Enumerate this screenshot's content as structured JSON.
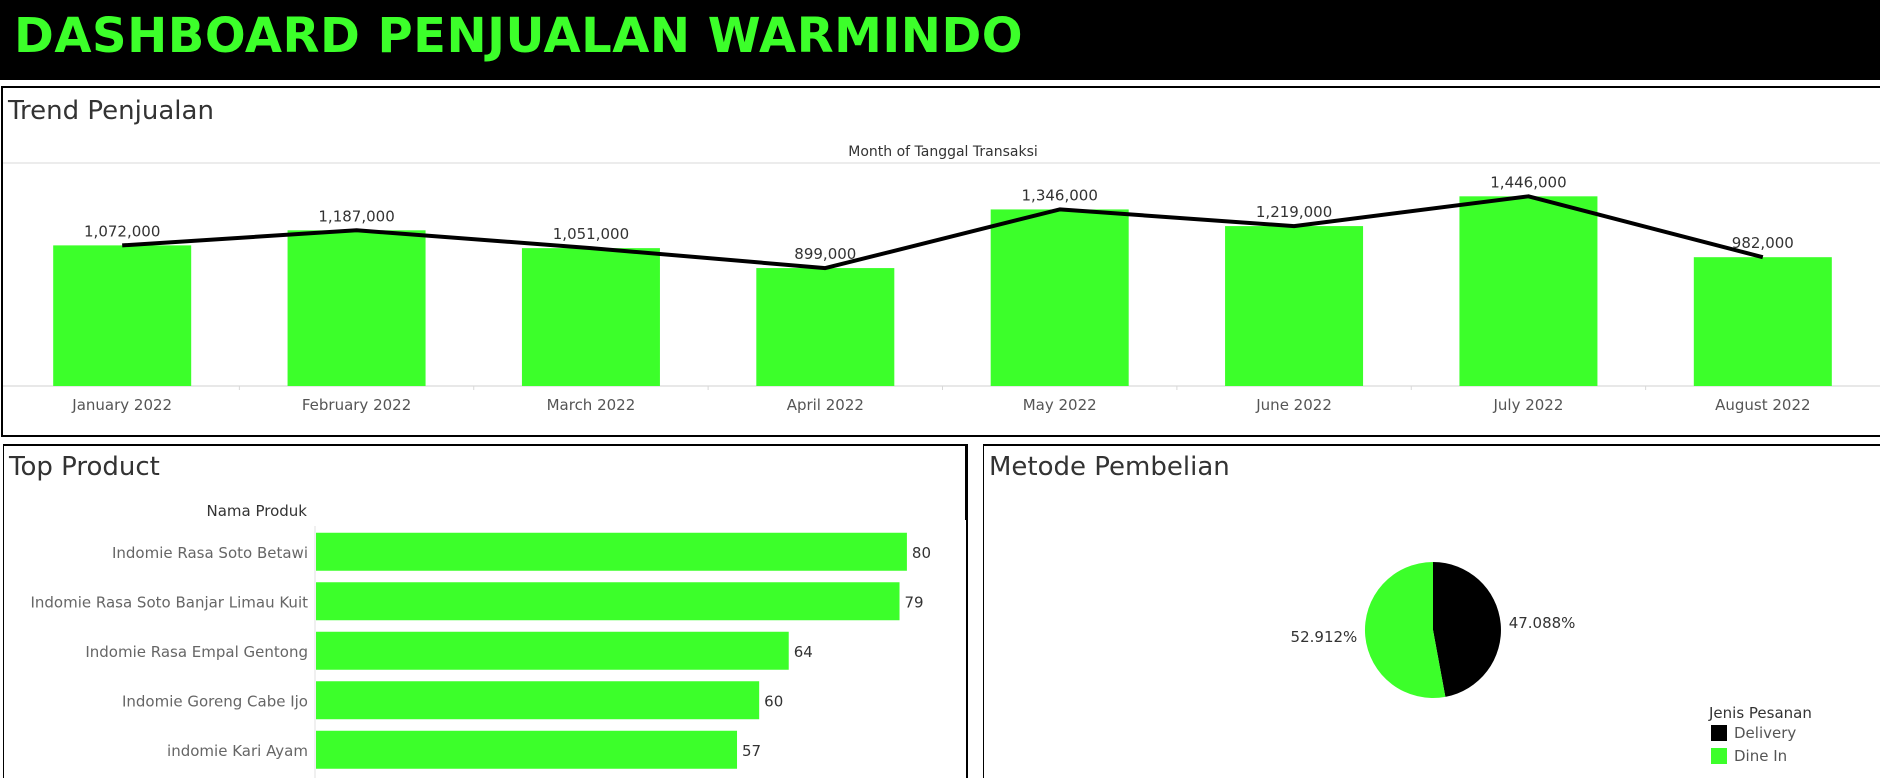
{
  "header": {
    "title": "DASHBOARD PENJUALAN WARMINDO"
  },
  "colors": {
    "accent": "#3cff2a",
    "dark": "#000000",
    "header_bg": "#000000"
  },
  "trend": {
    "title": "Trend Penjualan"
  },
  "top_product": {
    "title": "Top Product"
  },
  "metode": {
    "title": "Metode Pembelian"
  },
  "chart_data": [
    {
      "type": "bar",
      "subtype": "bar-with-line",
      "xlabel": "Month of Tanggal Transaksi",
      "ylabel": "",
      "categories": [
        "January 2022",
        "February 2022",
        "March 2022",
        "April 2022",
        "May 2022",
        "June 2022",
        "July 2022",
        "August 2022"
      ],
      "values": [
        1072000,
        1187000,
        1051000,
        899000,
        1346000,
        1219000,
        1446000,
        982000
      ],
      "data_labels": [
        "1,072,000",
        "1,187,000",
        "1,051,000",
        "899,000",
        "1,346,000",
        "1,219,000",
        "1,446,000",
        "982,000"
      ],
      "line_values": [
        1072000,
        1187000,
        1051000,
        899000,
        1346000,
        1219000,
        1446000,
        982000
      ],
      "bar_color": "#3cff2a",
      "line_color": "#000000",
      "ylim": [
        0,
        1700000
      ],
      "grid": false
    },
    {
      "type": "bar",
      "orientation": "horizontal",
      "ylabel": "Nama Produk",
      "categories": [
        "Indomie Rasa Soto Betawi",
        "Indomie Rasa Soto Banjar Limau Kuit",
        "Indomie Rasa Empal Gentong",
        "Indomie Goreng Cabe Ijo",
        "indomie Kari Ayam"
      ],
      "values": [
        80,
        79,
        64,
        60,
        57
      ],
      "data_labels": [
        "80",
        "79",
        "64",
        "60",
        "57"
      ],
      "bar_color": "#3cff2a",
      "xlim": [
        0,
        88
      ],
      "grid": false
    },
    {
      "type": "pie",
      "legend_title": "Jenis Pesanan",
      "legend_placement": "bottom-right",
      "slices": [
        {
          "name": "Delivery",
          "value": 47.088,
          "label": "47.088%",
          "color": "#000000"
        },
        {
          "name": "Dine In",
          "value": 52.912,
          "label": "52.912%",
          "color": "#3cff2a"
        }
      ]
    }
  ]
}
